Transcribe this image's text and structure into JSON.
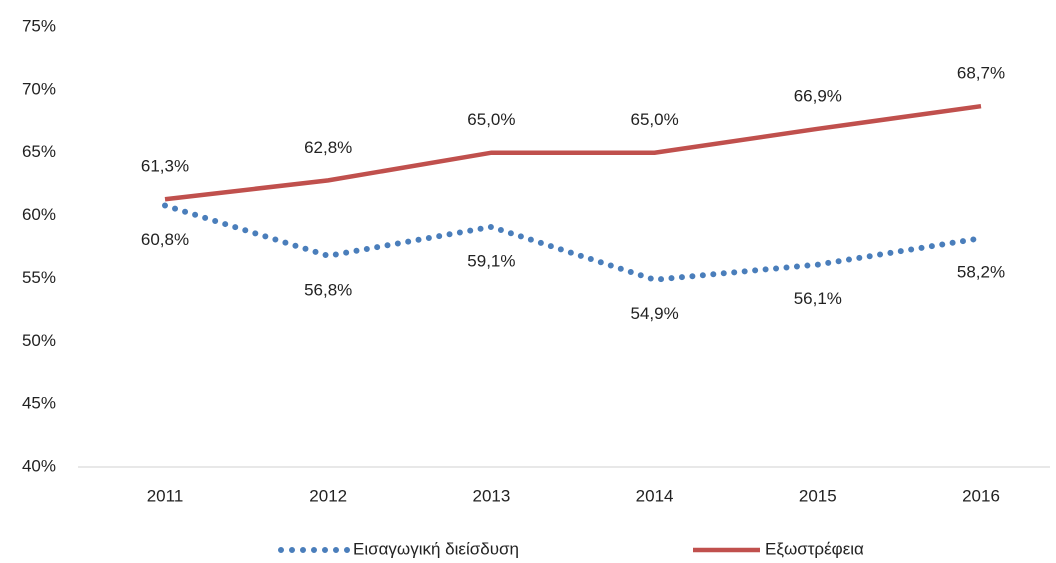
{
  "chart_data": {
    "type": "line",
    "categories": [
      "2011",
      "2012",
      "2013",
      "2014",
      "2015",
      "2016"
    ],
    "series": [
      {
        "name": "Εισαγωγική διείσδυση",
        "color": "#4a7ebb",
        "dotted": true,
        "values": [
          60.8,
          56.8,
          59.1,
          54.9,
          56.1,
          58.2
        ],
        "value_labels": [
          "60,8%",
          "56,8%",
          "59,1%",
          "54,9%",
          "56,1%",
          "58,2%"
        ],
        "label_position": "below"
      },
      {
        "name": "Εξωστρέφεια",
        "color": "#c0504d",
        "dotted": false,
        "values": [
          61.3,
          62.8,
          65.0,
          65.0,
          66.9,
          68.7
        ],
        "value_labels": [
          "61,3%",
          "62,8%",
          "65,0%",
          "65,0%",
          "66,9%",
          "68,7%"
        ],
        "label_position": "above"
      }
    ],
    "ylim": [
      40,
      75
    ],
    "yticks": [
      {
        "value": 40,
        "label": "40%"
      },
      {
        "value": 45,
        "label": "45%"
      },
      {
        "value": 50,
        "label": "50%"
      },
      {
        "value": 55,
        "label": "55%"
      },
      {
        "value": 60,
        "label": "60%"
      },
      {
        "value": 65,
        "label": "65%"
      },
      {
        "value": 70,
        "label": "70%"
      },
      {
        "value": 75,
        "label": "75%"
      }
    ],
    "grid": false,
    "legend": "bottom"
  }
}
